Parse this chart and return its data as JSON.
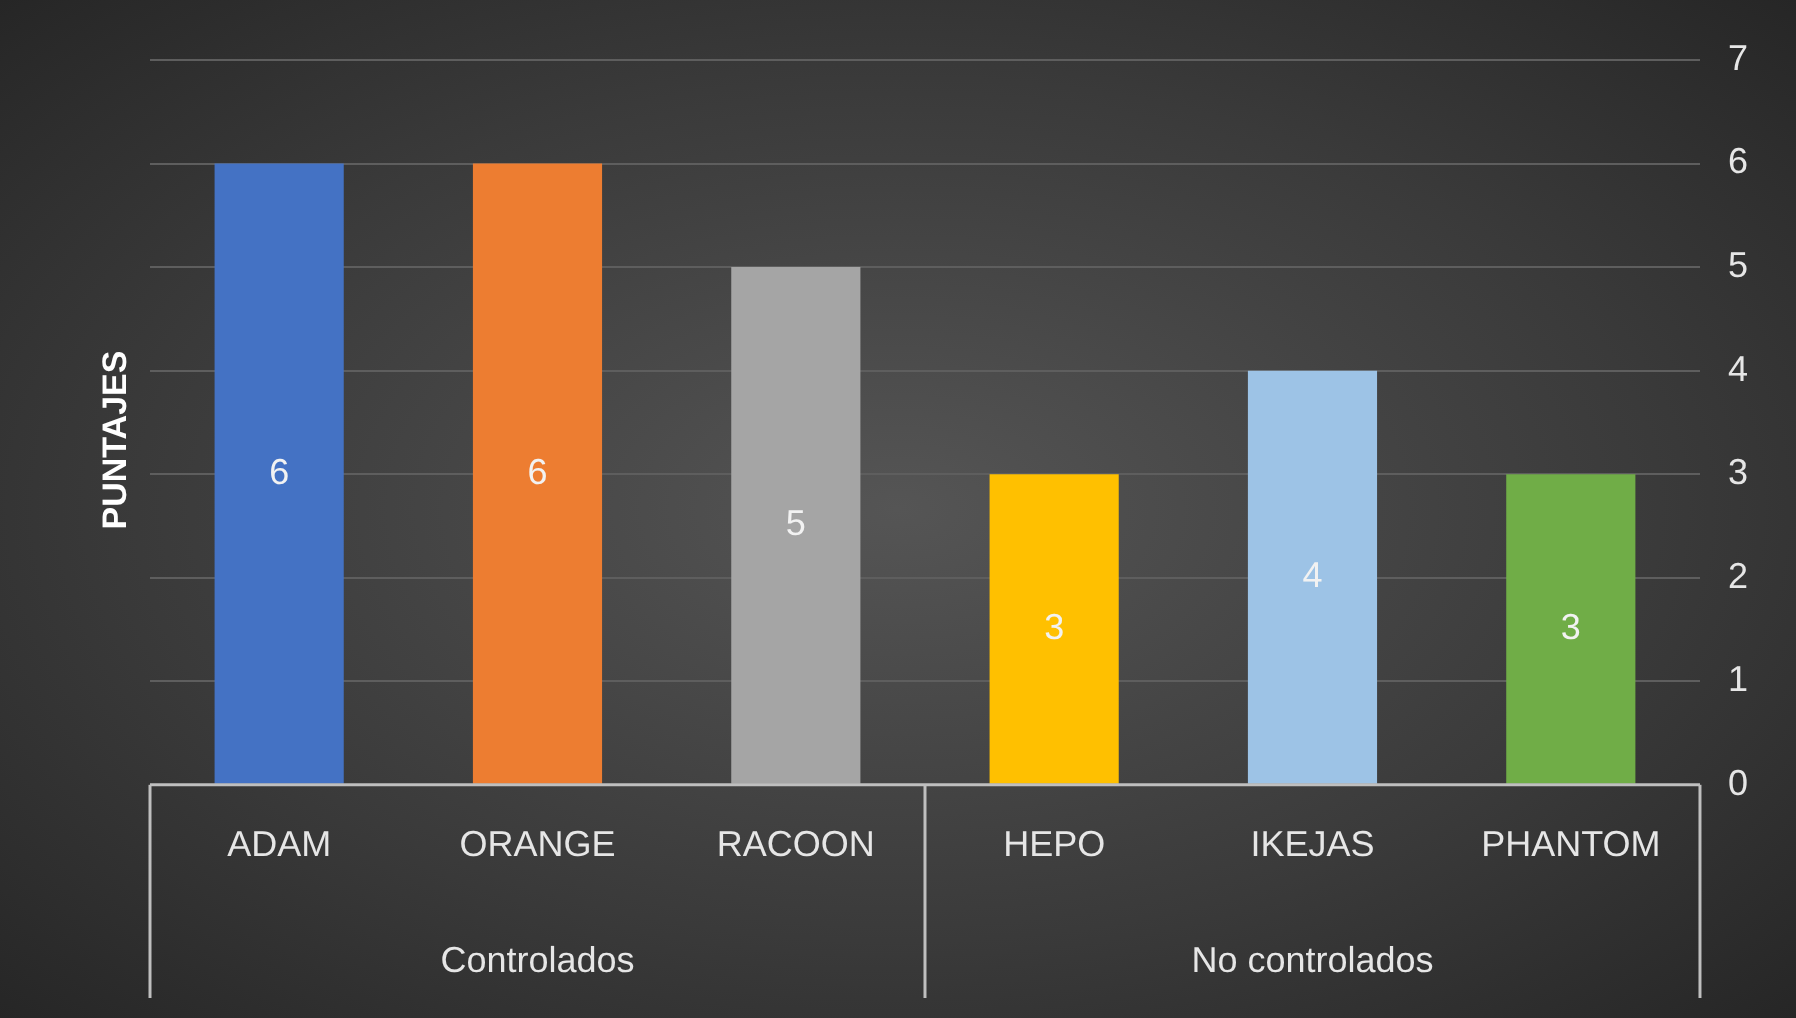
{
  "chart_data": {
    "type": "bar",
    "ylabel": "PUNTAJES",
    "categories": [
      "ADAM",
      "ORANGE",
      "RACOON",
      "HEPO",
      "IKEJAS",
      "PHANTOM"
    ],
    "values": [
      6,
      6,
      5,
      3,
      4,
      3
    ],
    "colors": [
      "#4472c4",
      "#ed7d31",
      "#a5a5a5",
      "#ffc000",
      "#9dc3e6",
      "#70ad47"
    ],
    "ylim": [
      0,
      7
    ],
    "yticks": [
      0,
      1,
      2,
      3,
      4,
      5,
      6,
      7
    ],
    "grid": "y",
    "data_labels": true,
    "legend": false,
    "annotations": [
      "Controlados",
      "No controlados"
    ]
  }
}
